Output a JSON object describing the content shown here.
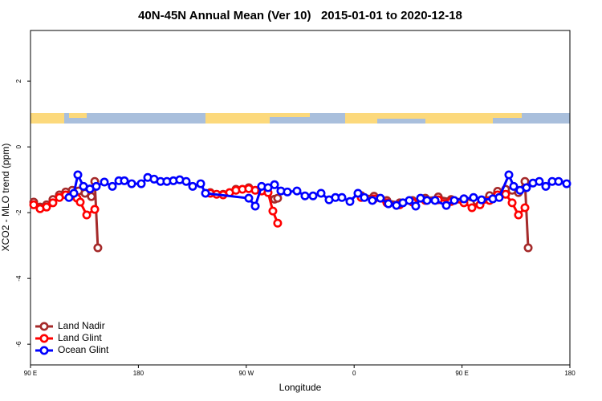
{
  "chart_data": {
    "type": "line",
    "title": "40N-45N Annual Mean (Ver 10)   2015-01-01 to 2020-12-18",
    "xlabel": "Longitude",
    "ylabel": "XCO2 - MLO trend (ppm)",
    "xlim": [
      90,
      540
    ],
    "ylim": [
      -6.63,
      3.54
    ],
    "xticks": [
      {
        "value": 90,
        "label": "90 E"
      },
      180,
      {
        "value": 270,
        "label": "90 W"
      },
      {
        "value": 360,
        "label": "0"
      },
      {
        "value": 450,
        "label": "90 E"
      },
      {
        "value": 540,
        "label": "180"
      }
    ],
    "yticks": [
      2,
      0,
      -2,
      -4,
      -6
    ],
    "legend": "bottom-left",
    "series": [
      {
        "name": "Land Nadir",
        "color": "#a52a2a",
        "x": [
          92.7,
          98,
          103.4,
          108.7,
          114.1,
          119.4,
          124.8,
          130.1,
          135.5,
          140.8,
          143.6,
          146.2,
          null,
          240,
          250.7,
          261.4,
          272.1,
          282.8,
          293.6,
          296.2,
          null,
          365.9,
          376.6,
          387.3,
          398,
          408.7,
          419.4,
          430.2,
          440.9,
          451.6,
          462.3,
          473,
          479.7,
          486.4,
          491.8,
          497.1,
          502.5,
          505.2
        ],
        "values": [
          -1.68,
          -1.83,
          -1.76,
          -1.6,
          -1.46,
          -1.37,
          -1.32,
          -1.34,
          -1.41,
          -1.51,
          -1.05,
          -3.07,
          null,
          -1.39,
          -1.44,
          -1.29,
          -1.24,
          -1.34,
          -1.59,
          -1.56,
          null,
          -1.48,
          -1.5,
          -1.63,
          -1.7,
          -1.63,
          -1.56,
          -1.52,
          -1.6,
          -1.58,
          -1.65,
          -1.48,
          -1.35,
          -1.29,
          -1.32,
          -1.39,
          -1.05,
          -3.07
        ]
      },
      {
        "name": "Land Glint",
        "color": "#ff0000",
        "x": [
          92.7,
          98,
          103.4,
          108.7,
          114.1,
          119.4,
          124.8,
          128.8,
          131.5,
          136.9,
          143.6,
          null,
          240,
          245.3,
          250.7,
          256.1,
          261.4,
          266.8,
          272.1,
          277.5,
          282.8,
          288.2,
          292.2,
          296.2,
          null,
          365.9,
          376.6,
          387.3,
          398,
          408.7,
          419.4,
          430.2,
          440.9,
          451.6,
          458.3,
          465,
          473,
          479.7,
          486.4,
          491.8,
          497.1,
          502.5
        ],
        "values": [
          -1.76,
          -1.88,
          -1.83,
          -1.7,
          -1.54,
          -1.46,
          -1.49,
          -1.56,
          -1.68,
          -2.07,
          -1.9,
          null,
          -1.41,
          -1.44,
          -1.46,
          -1.39,
          -1.32,
          -1.29,
          -1.27,
          -1.32,
          -1.34,
          -1.39,
          -1.95,
          -2.32,
          null,
          -1.54,
          -1.58,
          -1.7,
          -1.76,
          -1.68,
          -1.63,
          -1.61,
          -1.66,
          -1.7,
          -1.85,
          -1.76,
          -1.63,
          -1.46,
          -1.44,
          -1.7,
          -2.07,
          -1.85
        ]
      },
      {
        "name": "Ocean Glint",
        "color": "#0000ff",
        "x": [
          122.1,
          126.2,
          129.5,
          134.2,
          139.6,
          144.9,
          151.6,
          158.3,
          163.7,
          168.3,
          174.4,
          182.4,
          187.8,
          193.1,
          198.5,
          203.8,
          209.2,
          214.5,
          219.9,
          225.3,
          232,
          236,
          272.1,
          277.5,
          282.8,
          288.2,
          293.6,
          298.9,
          304.3,
          312.3,
          319,
          325.7,
          332.4,
          339.1,
          344.4,
          349.8,
          356.5,
          363.2,
          368.5,
          375.2,
          381.9,
          388.6,
          395.3,
          400.7,
          406,
          411.4,
          415.4,
          420.8,
          427.5,
          436.9,
          443.5,
          451.6,
          459.6,
          466.3,
          475.7,
          481,
          489.1,
          493.1,
          498.4,
          503.8,
          509.2,
          514.5,
          519.9,
          525.2,
          530.6,
          537.3
        ],
        "values": [
          -1.54,
          -1.41,
          -0.85,
          -1.2,
          -1.28,
          -1.2,
          -1.07,
          -1.2,
          -1.03,
          -1.03,
          -1.12,
          -1.12,
          -0.93,
          -0.98,
          -1.05,
          -1.05,
          -1.03,
          -1.0,
          -1.05,
          -1.2,
          -1.12,
          -1.41,
          -1.56,
          -1.8,
          -1.2,
          -1.24,
          -1.15,
          -1.34,
          -1.37,
          -1.34,
          -1.49,
          -1.49,
          -1.41,
          -1.61,
          -1.54,
          -1.54,
          -1.66,
          -1.41,
          -1.54,
          -1.63,
          -1.56,
          -1.73,
          -1.78,
          -1.7,
          -1.63,
          -1.8,
          -1.56,
          -1.63,
          -1.63,
          -1.78,
          -1.63,
          -1.58,
          -1.54,
          -1.61,
          -1.58,
          -1.54,
          -0.85,
          -1.2,
          -1.32,
          -1.24,
          -1.1,
          -1.05,
          -1.2,
          -1.05,
          -1.05,
          -1.12
        ]
      }
    ]
  }
}
